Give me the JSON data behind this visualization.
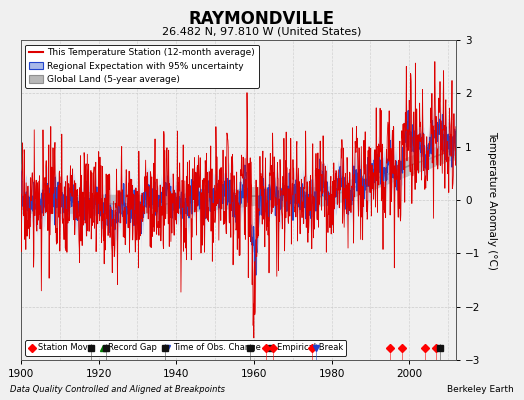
{
  "title": "RAYMONDVILLE",
  "subtitle": "26.482 N, 97.810 W (United States)",
  "ylabel": "Temperature Anomaly (°C)",
  "xlabel_note": "Data Quality Controlled and Aligned at Breakpoints",
  "credit": "Berkeley Earth",
  "xlim": [
    1900,
    2012
  ],
  "ylim": [
    -3,
    3
  ],
  "yticks": [
    -3,
    -2,
    -1,
    0,
    1,
    2,
    3
  ],
  "xticks": [
    1900,
    1920,
    1940,
    1960,
    1980,
    2000
  ],
  "bg_color": "#f0f0f0",
  "station_move_years": [
    1963,
    1965,
    1975,
    1995,
    1998,
    2004,
    2007
  ],
  "empirical_break_years": [
    1918,
    1922,
    1937,
    1959,
    2008
  ],
  "time_obs_change_years": [
    1976
  ],
  "seed": 17
}
